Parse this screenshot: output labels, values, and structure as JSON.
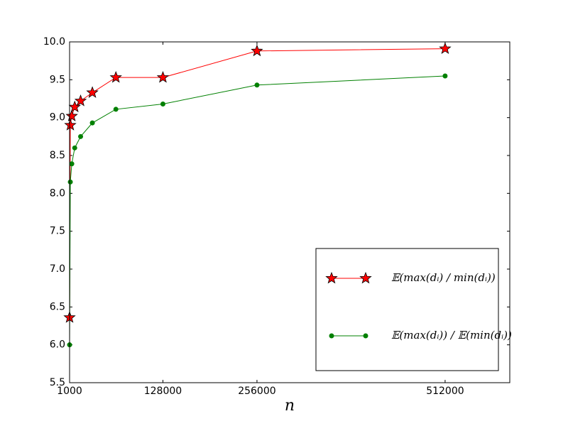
{
  "chart_data": {
    "type": "line",
    "xlabel": "n",
    "x": [
      1000,
      2000,
      4000,
      8000,
      16000,
      32000,
      64000,
      128000,
      256000,
      512000
    ],
    "series": [
      {
        "name": "𝔼(max(dᵢ) / min(dᵢ))",
        "color": "#ff0000",
        "marker": "star",
        "values": [
          6.36,
          8.9,
          9.02,
          9.14,
          9.22,
          9.33,
          9.53,
          9.53,
          9.88,
          9.91
        ]
      },
      {
        "name": "𝔼(max(dᵢ)) / 𝔼(min(dᵢ))",
        "color": "#008000",
        "marker": "circle",
        "values": [
          6.0,
          8.15,
          8.39,
          8.6,
          8.75,
          8.93,
          9.11,
          9.18,
          9.43,
          9.55
        ]
      }
    ],
    "xlim": [
      1000,
      600000
    ],
    "xticks": [
      1000,
      128000,
      256000,
      512000
    ],
    "ylim": [
      5.5,
      10.0
    ],
    "yticks": [
      5.5,
      {
        "value": 6.0,
        "label": "6.0"
      },
      6.5,
      {
        "value": 7.0,
        "label": "7.0"
      },
      7.5,
      {
        "value": 8.0,
        "label": "8.0"
      },
      8.5,
      {
        "value": 9.0,
        "label": "9.0"
      },
      9.5,
      {
        "value": 10.0,
        "label": "10.0"
      }
    ],
    "legend": "lower right"
  }
}
